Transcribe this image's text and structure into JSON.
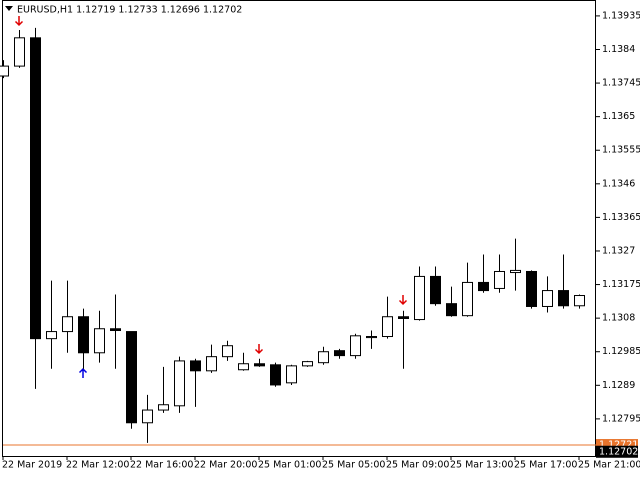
{
  "chart_data": {
    "type": "candlestick",
    "title": "EURUSD,H1  1.12719 1.12733 1.12696 1.12702",
    "categories": [
      "22 Mar 2019",
      null,
      null,
      null,
      "22 Mar 12:00",
      null,
      null,
      null,
      "22 Mar 16:00",
      null,
      null,
      null,
      "22 Mar 20:00",
      null,
      null,
      null,
      "25 Mar 01:00",
      null,
      null,
      null,
      "25 Mar 05:00",
      null,
      null,
      null,
      "25 Mar 09:00",
      null,
      null,
      null,
      "25 Mar 13:00",
      null,
      null,
      null,
      "25 Mar 17:00",
      null,
      null,
      null,
      "25 Mar 21:00"
    ],
    "open": [
      1.13765,
      1.13793,
      1.13873,
      1.13022,
      1.13042,
      1.13084,
      1.12982,
      1.1305,
      1.13042,
      1.12784,
      1.1282,
      1.12832,
      1.12959,
      1.12931,
      1.12971,
      1.12934,
      1.12951,
      1.12948,
      1.12897,
      1.12945,
      1.12954,
      1.12988,
      1.12974,
      1.13025,
      1.13028,
      1.13084,
      1.13076,
      1.13198,
      1.13121,
      1.13087,
      1.13181,
      1.13164,
      1.13209,
      1.13212,
      1.13113,
      1.13158,
      1.13115
    ],
    "high": [
      1.1381,
      1.13895,
      1.13901,
      1.13186,
      1.13186,
      1.13107,
      1.13101,
      1.13147,
      1.13042,
      1.12863,
      1.12942,
      1.12971,
      1.12965,
      1.13005,
      1.13016,
      1.12982,
      1.12965,
      1.12954,
      1.12948,
      1.12959,
      1.12999,
      1.12993,
      1.13036,
      1.13045,
      1.13141,
      1.13101,
      1.13226,
      1.13226,
      1.13169,
      1.13237,
      1.1326,
      1.1326,
      1.13305,
      1.13215,
      1.13198,
      1.1326,
      1.13147
    ],
    "low": [
      1.13759,
      1.13788,
      1.1288,
      1.12937,
      1.12982,
      1.12937,
      1.12954,
      1.12937,
      1.12767,
      1.12727,
      1.12812,
      1.12812,
      1.12829,
      1.12925,
      1.12959,
      1.12931,
      1.12942,
      1.12886,
      1.12891,
      1.12942,
      1.12948,
      1.12965,
      1.12965,
      1.12993,
      1.13022,
      1.12937,
      1.13073,
      1.13115,
      1.13084,
      1.13084,
      1.13152,
      1.13152,
      1.13158,
      1.13107,
      1.13096,
      1.13107,
      1.13107
    ],
    "close": [
      1.13793,
      1.13873,
      1.13022,
      1.13042,
      1.13084,
      1.12982,
      1.1305,
      1.13045,
      1.12784,
      1.1282,
      1.12835,
      1.12959,
      1.12931,
      1.12971,
      1.13002,
      1.12951,
      1.12945,
      1.12891,
      1.12945,
      1.12957,
      1.12985,
      1.12974,
      1.1303,
      1.13028,
      1.13084,
      1.13079,
      1.13198,
      1.13121,
      1.13087,
      1.13181,
      1.13158,
      1.13212,
      1.13215,
      1.13113,
      1.13158,
      1.13115,
      1.13144
    ],
    "up_color": "#ffffff",
    "down_color": "#000000",
    "ylim": [
      1.1269,
      1.1398
    ],
    "yticks": [
      1.13935,
      1.1384,
      1.13745,
      1.1365,
      1.13555,
      1.1346,
      1.13365,
      1.1327,
      1.13175,
      1.1308,
      1.12985,
      1.1289,
      1.12795
    ],
    "price_lines": [
      {
        "value": 1.12721,
        "color": "#e8742c",
        "show_line": true
      },
      {
        "value": 1.12702,
        "color": "#000000",
        "show_line": false
      }
    ]
  }
}
